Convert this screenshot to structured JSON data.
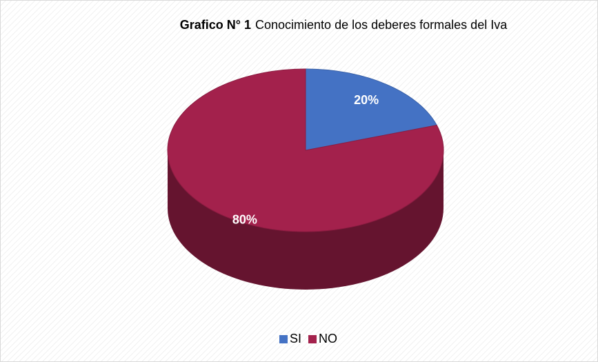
{
  "chart_data": {
    "type": "pie",
    "title_label": "Grafico N° 1",
    "title": "Conocimiento de los deberes formales del Iva",
    "categories": [
      "SI",
      "NO"
    ],
    "values": [
      20,
      80
    ],
    "value_labels": [
      "20%",
      "80%"
    ],
    "colors": [
      "#4472c4",
      "#a3214c"
    ],
    "legend": "bottom"
  }
}
